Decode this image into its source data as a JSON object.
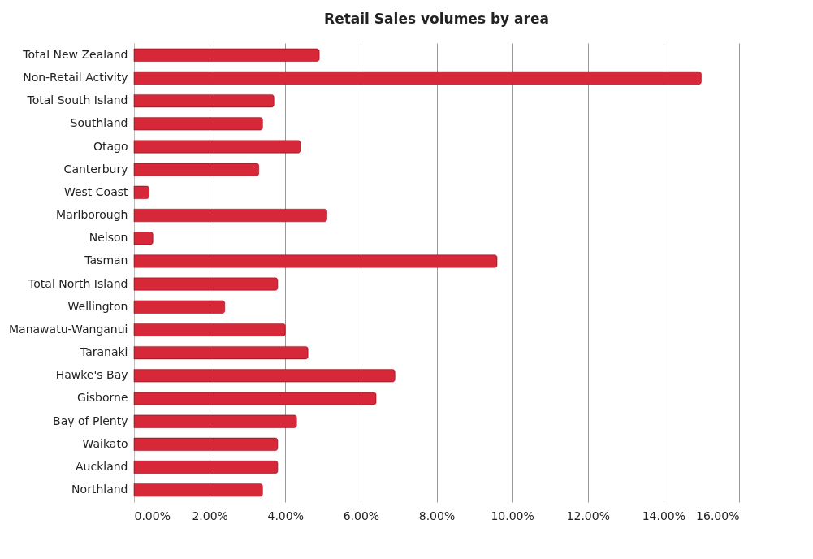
{
  "chart_data": {
    "type": "bar",
    "title": "Retail Sales volumes by area",
    "orientation": "horizontal",
    "categories": [
      "Total New Zealand",
      "Non-Retail Activity",
      "Total South Island",
      "Southland",
      "Otago",
      "Canterbury",
      "West Coast",
      "Marlborough",
      "Nelson",
      "Tasman",
      "Total North Island",
      "Wellington",
      "Manawatu-Wanganui",
      "Taranaki",
      "Hawke's Bay",
      "Gisborne",
      "Bay of Plenty",
      "Waikato",
      "Auckland",
      "Northland"
    ],
    "values": [
      4.9,
      15.0,
      3.7,
      3.4,
      4.4,
      3.3,
      0.4,
      5.1,
      0.5,
      9.6,
      3.8,
      2.4,
      4.0,
      4.6,
      6.9,
      6.4,
      4.3,
      3.8,
      3.8,
      3.4
    ],
    "color": "#d62839",
    "xlim": [
      0,
      16
    ],
    "xticks": [
      {
        "value": 0,
        "label": "0.00%"
      },
      {
        "value": 2,
        "label": "2.00%"
      },
      {
        "value": 4,
        "label": "4.00%"
      },
      {
        "value": 6,
        "label": "6.00%"
      },
      {
        "value": 8,
        "label": "8.00%"
      },
      {
        "value": 10,
        "label": "10.00%"
      },
      {
        "value": 12,
        "label": "12.00%"
      },
      {
        "value": 14,
        "label": "14.00%"
      },
      {
        "value": 16,
        "label": "16.00%"
      }
    ],
    "grid": "x"
  }
}
